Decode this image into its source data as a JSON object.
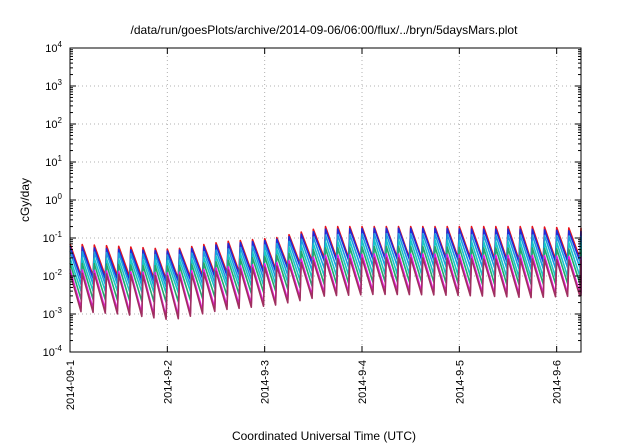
{
  "chart_data": {
    "type": "line",
    "title": "/data/run/goesPlots/archive/2014-09-06/06:00/flux/../bryn/5daysMars.plot",
    "xlabel": "Coordinated Universal Time (UTC)",
    "ylabel": "cGy/day",
    "yscale": "log",
    "ylim": [
      0.0001,
      10000
    ],
    "y_ticks": [
      {
        "base": "10",
        "exp": "-4"
      },
      {
        "base": "10",
        "exp": "-3"
      },
      {
        "base": "10",
        "exp": "-2"
      },
      {
        "base": "10",
        "exp": "-1"
      },
      {
        "base": "10",
        "exp": "0"
      },
      {
        "base": "10",
        "exp": "1"
      },
      {
        "base": "10",
        "exp": "2"
      },
      {
        "base": "10",
        "exp": "3"
      },
      {
        "base": "10",
        "exp": "4"
      }
    ],
    "x_ticks": [
      "2014-09-1",
      "2014-9-2",
      "2014-9-3",
      "2014-9-4",
      "2014-9-5",
      "2014-9-6"
    ],
    "xlim": [
      "2014-09-01 00:00",
      "2014-09-06 06:00"
    ],
    "grid": true,
    "sawtooth_period_hours": 3,
    "series": [
      {
        "color": "#e8141c",
        "peaks": [
          0.07,
          0.06,
          0.05,
          0.08,
          0.1,
          0.2,
          0.2,
          0.2,
          0.2,
          0.2,
          0.18
        ],
        "troughs": [
          0.01,
          0.01,
          0.008,
          0.012,
          0.015,
          0.03,
          0.03,
          0.03,
          0.03,
          0.025,
          0.03
        ]
      },
      {
        "color": "#1f2bd8",
        "peaks": [
          0.06,
          0.05,
          0.045,
          0.07,
          0.09,
          0.17,
          0.18,
          0.18,
          0.17,
          0.17,
          0.15
        ],
        "troughs": [
          0.009,
          0.008,
          0.007,
          0.01,
          0.013,
          0.025,
          0.028,
          0.027,
          0.026,
          0.022,
          0.025
        ]
      },
      {
        "color": "#1a9ee0",
        "peaks": [
          0.045,
          0.04,
          0.035,
          0.05,
          0.07,
          0.12,
          0.13,
          0.13,
          0.12,
          0.12,
          0.11
        ],
        "troughs": [
          0.006,
          0.006,
          0.005,
          0.007,
          0.009,
          0.016,
          0.018,
          0.018,
          0.017,
          0.015,
          0.017
        ]
      },
      {
        "color": "#18c7c7",
        "peaks": [
          0.03,
          0.028,
          0.025,
          0.035,
          0.05,
          0.08,
          0.09,
          0.09,
          0.08,
          0.08,
          0.075
        ],
        "troughs": [
          0.004,
          0.004,
          0.0035,
          0.005,
          0.006,
          0.01,
          0.011,
          0.011,
          0.01,
          0.009,
          0.01
        ]
      },
      {
        "color": "#23a86a",
        "peaks": [
          0.022,
          0.02,
          0.018,
          0.025,
          0.035,
          0.055,
          0.06,
          0.06,
          0.055,
          0.055,
          0.05
        ],
        "troughs": [
          0.0025,
          0.0023,
          0.002,
          0.003,
          0.004,
          0.006,
          0.007,
          0.007,
          0.006,
          0.006,
          0.0065
        ]
      },
      {
        "color": "#e817e2",
        "peaks": [
          0.015,
          0.013,
          0.012,
          0.017,
          0.022,
          0.035,
          0.038,
          0.038,
          0.035,
          0.035,
          0.032
        ],
        "troughs": [
          0.0015,
          0.0012,
          0.0008,
          0.0016,
          0.002,
          0.0035,
          0.004,
          0.0038,
          0.0035,
          0.0032,
          0.0035
        ]
      },
      {
        "color": "#a03060",
        "peaks": [
          0.012,
          0.011,
          0.01,
          0.014,
          0.018,
          0.028,
          0.03,
          0.03,
          0.028,
          0.028,
          0.026
        ],
        "troughs": [
          0.0012,
          0.001,
          0.0007,
          0.0013,
          0.0017,
          0.003,
          0.0033,
          0.0032,
          0.003,
          0.0027,
          0.003
        ]
      }
    ]
  }
}
